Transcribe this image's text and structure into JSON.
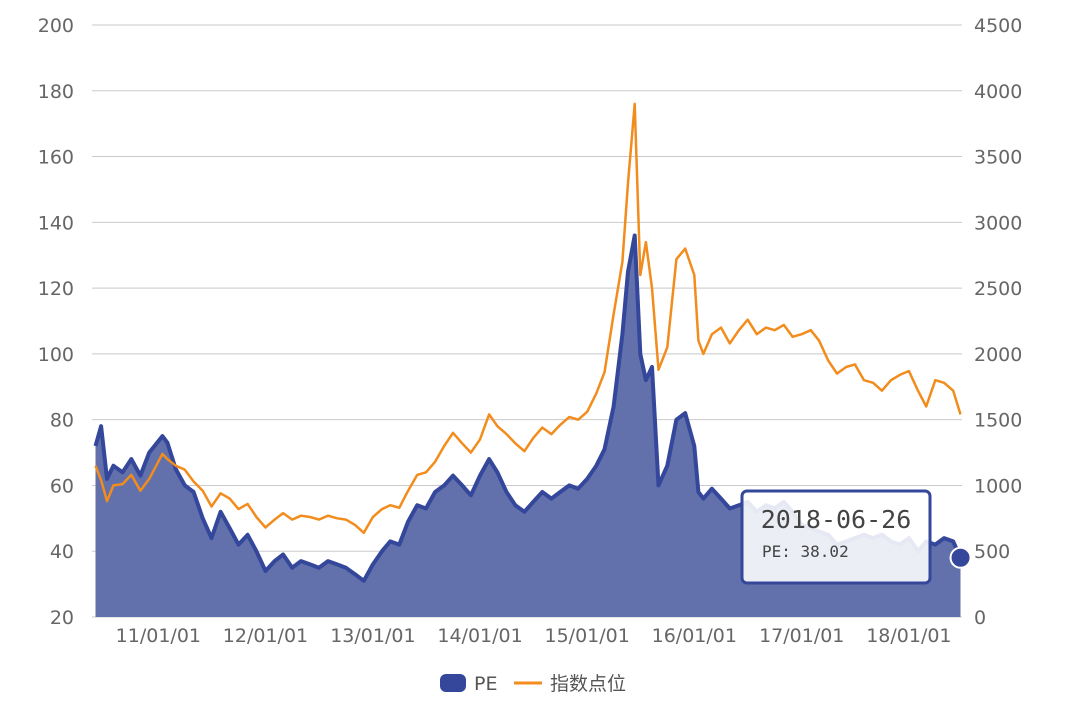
{
  "chart_data": {
    "type": "area",
    "x_axis": {
      "tick_labels": [
        "11/01/01",
        "12/01/01",
        "13/01/01",
        "14/01/01",
        "15/01/01",
        "16/01/01",
        "17/01/01",
        "18/01/01"
      ],
      "range": [
        "2010-06-01",
        "2018-06-26"
      ]
    },
    "y_left": {
      "range": [
        20,
        200
      ],
      "ticks": [
        20,
        40,
        60,
        80,
        100,
        120,
        140,
        160,
        180,
        200
      ]
    },
    "y_right": {
      "range": [
        0,
        4500
      ],
      "ticks": [
        0,
        500,
        1000,
        1500,
        2000,
        2500,
        3000,
        3500,
        4000,
        4500
      ]
    },
    "grid": true,
    "legend": {
      "position": "bottom-center"
    },
    "series": [
      {
        "name": "PE",
        "kind": "area",
        "axis": "left",
        "color": "#34479a",
        "fill": "#6270ac",
        "points": [
          [
            "2010-06-01",
            72
          ],
          [
            "2010-06-20",
            78
          ],
          [
            "2010-07-10",
            62
          ],
          [
            "2010-08-01",
            66
          ],
          [
            "2010-09-01",
            64
          ],
          [
            "2010-10-01",
            68
          ],
          [
            "2010-11-01",
            63
          ],
          [
            "2010-12-01",
            70
          ],
          [
            "2011-01-15",
            75
          ],
          [
            "2011-02-01",
            73
          ],
          [
            "2011-03-01",
            65
          ],
          [
            "2011-04-01",
            60
          ],
          [
            "2011-05-01",
            58
          ],
          [
            "2011-06-01",
            50
          ],
          [
            "2011-07-01",
            44
          ],
          [
            "2011-08-01",
            52
          ],
          [
            "2011-09-01",
            47
          ],
          [
            "2011-10-01",
            42
          ],
          [
            "2011-11-01",
            45
          ],
          [
            "2011-12-01",
            40
          ],
          [
            "2012-01-01",
            34
          ],
          [
            "2012-02-01",
            37
          ],
          [
            "2012-03-01",
            39
          ],
          [
            "2012-04-01",
            35
          ],
          [
            "2012-05-01",
            37
          ],
          [
            "2012-06-01",
            36
          ],
          [
            "2012-07-01",
            35
          ],
          [
            "2012-08-01",
            37
          ],
          [
            "2012-09-01",
            36
          ],
          [
            "2012-10-01",
            35
          ],
          [
            "2012-11-01",
            33
          ],
          [
            "2012-12-01",
            31
          ],
          [
            "2013-01-01",
            36
          ],
          [
            "2013-02-01",
            40
          ],
          [
            "2013-03-01",
            43
          ],
          [
            "2013-04-01",
            42
          ],
          [
            "2013-05-01",
            49
          ],
          [
            "2013-06-01",
            54
          ],
          [
            "2013-07-01",
            53
          ],
          [
            "2013-08-01",
            58
          ],
          [
            "2013-09-01",
            60
          ],
          [
            "2013-10-01",
            63
          ],
          [
            "2013-11-01",
            60
          ],
          [
            "2013-12-01",
            57
          ],
          [
            "2014-01-01",
            63
          ],
          [
            "2014-02-01",
            68
          ],
          [
            "2014-03-01",
            64
          ],
          [
            "2014-04-01",
            58
          ],
          [
            "2014-05-01",
            54
          ],
          [
            "2014-06-01",
            52
          ],
          [
            "2014-07-01",
            55
          ],
          [
            "2014-08-01",
            58
          ],
          [
            "2014-09-01",
            56
          ],
          [
            "2014-10-01",
            58
          ],
          [
            "2014-11-01",
            60
          ],
          [
            "2014-12-01",
            59
          ],
          [
            "2015-01-01",
            62
          ],
          [
            "2015-02-01",
            66
          ],
          [
            "2015-03-01",
            71
          ],
          [
            "2015-04-01",
            84
          ],
          [
            "2015-05-01",
            106
          ],
          [
            "2015-05-20",
            125
          ],
          [
            "2015-06-12",
            136
          ],
          [
            "2015-07-01",
            100
          ],
          [
            "2015-07-20",
            92
          ],
          [
            "2015-08-10",
            96
          ],
          [
            "2015-09-01",
            60
          ],
          [
            "2015-10-01",
            66
          ],
          [
            "2015-11-01",
            80
          ],
          [
            "2015-12-01",
            82
          ],
          [
            "2016-01-01",
            72
          ],
          [
            "2016-01-15",
            58
          ],
          [
            "2016-02-01",
            56
          ],
          [
            "2016-03-01",
            59
          ],
          [
            "2016-04-01",
            56
          ],
          [
            "2016-05-01",
            53
          ],
          [
            "2016-06-01",
            54
          ],
          [
            "2016-07-01",
            55
          ],
          [
            "2016-08-01",
            52
          ],
          [
            "2016-09-01",
            54
          ],
          [
            "2016-10-01",
            53
          ],
          [
            "2016-11-01",
            55
          ],
          [
            "2016-12-01",
            52
          ],
          [
            "2017-01-01",
            48
          ],
          [
            "2017-02-01",
            47
          ],
          [
            "2017-03-01",
            46
          ],
          [
            "2017-04-01",
            45
          ],
          [
            "2017-05-01",
            42
          ],
          [
            "2017-06-01",
            43
          ],
          [
            "2017-07-01",
            44
          ],
          [
            "2017-08-01",
            45
          ],
          [
            "2017-09-01",
            44
          ],
          [
            "2017-10-01",
            45
          ],
          [
            "2017-11-01",
            43
          ],
          [
            "2017-12-01",
            42
          ],
          [
            "2018-01-01",
            44
          ],
          [
            "2018-02-01",
            40
          ],
          [
            "2018-03-01",
            43
          ],
          [
            "2018-04-01",
            42
          ],
          [
            "2018-05-01",
            44
          ],
          [
            "2018-06-01",
            43
          ],
          [
            "2018-06-26",
            38.02
          ]
        ]
      },
      {
        "name": "指数点位",
        "kind": "line",
        "axis": "right",
        "color": "#f28c1c",
        "points": [
          [
            "2010-06-01",
            1150
          ],
          [
            "2010-06-20",
            1040
          ],
          [
            "2010-07-10",
            880
          ],
          [
            "2010-08-01",
            1000
          ],
          [
            "2010-09-01",
            1010
          ],
          [
            "2010-10-01",
            1080
          ],
          [
            "2010-11-01",
            960
          ],
          [
            "2010-12-01",
            1050
          ],
          [
            "2011-01-15",
            1240
          ],
          [
            "2011-02-01",
            1200
          ],
          [
            "2011-03-01",
            1150
          ],
          [
            "2011-04-01",
            1120
          ],
          [
            "2011-05-01",
            1030
          ],
          [
            "2011-06-01",
            960
          ],
          [
            "2011-07-01",
            840
          ],
          [
            "2011-08-01",
            940
          ],
          [
            "2011-09-01",
            900
          ],
          [
            "2011-10-01",
            820
          ],
          [
            "2011-11-01",
            860
          ],
          [
            "2011-12-01",
            760
          ],
          [
            "2012-01-01",
            680
          ],
          [
            "2012-02-01",
            740
          ],
          [
            "2012-03-01",
            790
          ],
          [
            "2012-04-01",
            740
          ],
          [
            "2012-05-01",
            770
          ],
          [
            "2012-06-01",
            760
          ],
          [
            "2012-07-01",
            740
          ],
          [
            "2012-08-01",
            770
          ],
          [
            "2012-09-01",
            750
          ],
          [
            "2012-10-01",
            740
          ],
          [
            "2012-11-01",
            700
          ],
          [
            "2012-12-01",
            640
          ],
          [
            "2013-01-01",
            760
          ],
          [
            "2013-02-01",
            820
          ],
          [
            "2013-03-01",
            850
          ],
          [
            "2013-04-01",
            830
          ],
          [
            "2013-05-01",
            960
          ],
          [
            "2013-06-01",
            1080
          ],
          [
            "2013-07-01",
            1100
          ],
          [
            "2013-08-01",
            1180
          ],
          [
            "2013-09-01",
            1300
          ],
          [
            "2013-10-01",
            1400
          ],
          [
            "2013-11-01",
            1320
          ],
          [
            "2013-12-01",
            1250
          ],
          [
            "2014-01-01",
            1350
          ],
          [
            "2014-02-01",
            1540
          ],
          [
            "2014-03-01",
            1450
          ],
          [
            "2014-04-01",
            1390
          ],
          [
            "2014-05-01",
            1320
          ],
          [
            "2014-06-01",
            1260
          ],
          [
            "2014-07-01",
            1360
          ],
          [
            "2014-08-01",
            1440
          ],
          [
            "2014-09-01",
            1390
          ],
          [
            "2014-10-01",
            1460
          ],
          [
            "2014-11-01",
            1520
          ],
          [
            "2014-12-01",
            1500
          ],
          [
            "2015-01-01",
            1560
          ],
          [
            "2015-02-01",
            1700
          ],
          [
            "2015-03-01",
            1860
          ],
          [
            "2015-04-01",
            2300
          ],
          [
            "2015-05-01",
            2700
          ],
          [
            "2015-05-20",
            3300
          ],
          [
            "2015-06-12",
            3900
          ],
          [
            "2015-07-01",
            2600
          ],
          [
            "2015-07-20",
            2850
          ],
          [
            "2015-08-10",
            2500
          ],
          [
            "2015-09-01",
            1880
          ],
          [
            "2015-10-01",
            2050
          ],
          [
            "2015-11-01",
            2720
          ],
          [
            "2015-12-01",
            2800
          ],
          [
            "2016-01-01",
            2600
          ],
          [
            "2016-01-15",
            2100
          ],
          [
            "2016-02-01",
            2000
          ],
          [
            "2016-03-01",
            2150
          ],
          [
            "2016-04-01",
            2200
          ],
          [
            "2016-05-01",
            2080
          ],
          [
            "2016-06-01",
            2180
          ],
          [
            "2016-07-01",
            2260
          ],
          [
            "2016-08-01",
            2150
          ],
          [
            "2016-09-01",
            2200
          ],
          [
            "2016-10-01",
            2180
          ],
          [
            "2016-11-01",
            2220
          ],
          [
            "2016-12-01",
            2130
          ],
          [
            "2017-01-01",
            2150
          ],
          [
            "2017-02-01",
            2180
          ],
          [
            "2017-03-01",
            2100
          ],
          [
            "2017-04-01",
            1950
          ],
          [
            "2017-05-01",
            1850
          ],
          [
            "2017-06-01",
            1900
          ],
          [
            "2017-07-01",
            1920
          ],
          [
            "2017-08-01",
            1800
          ],
          [
            "2017-09-01",
            1780
          ],
          [
            "2017-10-01",
            1720
          ],
          [
            "2017-11-01",
            1800
          ],
          [
            "2017-12-01",
            1840
          ],
          [
            "2018-01-01",
            1870
          ],
          [
            "2018-02-01",
            1720
          ],
          [
            "2018-03-01",
            1600
          ],
          [
            "2018-04-01",
            1800
          ],
          [
            "2018-05-01",
            1780
          ],
          [
            "2018-06-01",
            1720
          ],
          [
            "2018-06-26",
            1540
          ]
        ]
      }
    ],
    "tooltip": {
      "date": "2018-06-26",
      "label": "PE: 38.02",
      "series": "PE",
      "value": 38.02
    }
  }
}
